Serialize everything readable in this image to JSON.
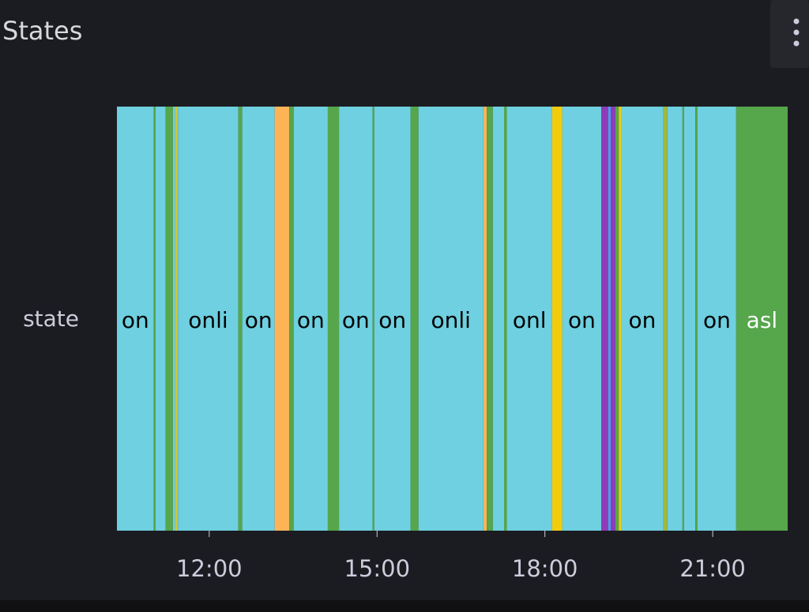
{
  "chart_data": {
    "type": "state-timeline",
    "title": "States",
    "row_label": "state",
    "xlim": [
      10.35,
      22.34
    ],
    "xticks": [
      {
        "value": 12,
        "label": "12:00"
      },
      {
        "value": 15,
        "label": "15:00"
      },
      {
        "value": 18,
        "label": "18:00"
      },
      {
        "value": 21,
        "label": "21:00"
      }
    ],
    "segments": [
      {
        "start": 10.35,
        "color": "#6ed0e0",
        "label": "on"
      },
      {
        "start": 11.01,
        "color": "#56a64b"
      },
      {
        "start": 11.04,
        "color": "#6ed0e0"
      },
      {
        "start": 11.22,
        "color": "#56a64b"
      },
      {
        "start": 11.35,
        "color": "#6ed0e0"
      },
      {
        "start": 11.39,
        "color": "#c8c83c"
      },
      {
        "start": 11.44,
        "color": "#6ed0e0",
        "label": "onli"
      },
      {
        "start": 12.52,
        "color": "#56a64b"
      },
      {
        "start": 12.59,
        "color": "#6ed0e0",
        "label": "on"
      },
      {
        "start": 13.17,
        "color": "#ffb357"
      },
      {
        "start": 13.43,
        "color": "#56a64b"
      },
      {
        "start": 13.51,
        "color": "#6ed0e0",
        "label": "on"
      },
      {
        "start": 14.12,
        "color": "#56a64b"
      },
      {
        "start": 14.32,
        "color": "#6ed0e0",
        "label": "on"
      },
      {
        "start": 14.92,
        "color": "#56a64b"
      },
      {
        "start": 14.95,
        "color": "#6ed0e0",
        "label": "on"
      },
      {
        "start": 15.6,
        "color": "#56a64b"
      },
      {
        "start": 15.74,
        "color": "#6ed0e0",
        "label": "onli"
      },
      {
        "start": 16.9,
        "color": "#ffb357"
      },
      {
        "start": 16.96,
        "color": "#56a64b"
      },
      {
        "start": 17.07,
        "color": "#6ed0e0"
      },
      {
        "start": 17.27,
        "color": "#56a64b"
      },
      {
        "start": 17.32,
        "color": "#6ed0e0",
        "label": "onl"
      },
      {
        "start": 18.13,
        "color": "#f2cc0c"
      },
      {
        "start": 18.31,
        "color": "#6ed0e0",
        "label": "on"
      },
      {
        "start": 19.01,
        "color": "#8f3bb8"
      },
      {
        "start": 19.13,
        "color": "#5794f2"
      },
      {
        "start": 19.18,
        "color": "#8f3bb8"
      },
      {
        "start": 19.26,
        "color": "#56a64b"
      },
      {
        "start": 19.32,
        "color": "#f2cc0c"
      },
      {
        "start": 19.36,
        "color": "#6ed0e0",
        "label": "on"
      },
      {
        "start": 20.12,
        "color": "#a0b83c"
      },
      {
        "start": 20.19,
        "color": "#6ed0e0"
      },
      {
        "start": 20.46,
        "color": "#56a64b"
      },
      {
        "start": 20.49,
        "color": "#6ed0e0"
      },
      {
        "start": 20.69,
        "color": "#56a64b"
      },
      {
        "start": 20.73,
        "color": "#6ed0e0",
        "label": "on"
      },
      {
        "start": 21.42,
        "color": "#56a64b",
        "label": "asl"
      }
    ]
  }
}
